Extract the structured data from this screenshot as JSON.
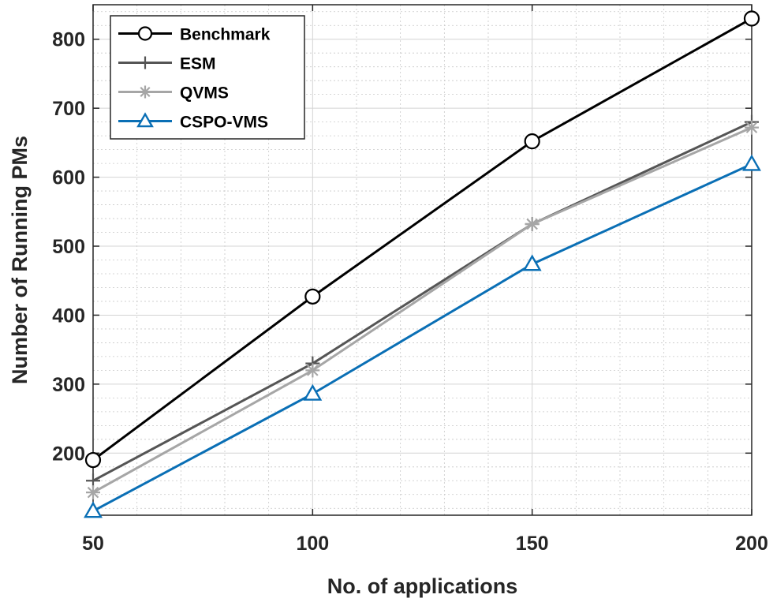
{
  "chart_data": {
    "type": "line",
    "title": "",
    "xlabel": "No. of applications",
    "ylabel": "Number of Running PMs",
    "x": [
      50,
      100,
      150,
      200
    ],
    "xlim": [
      50,
      200
    ],
    "ylim": [
      110,
      850
    ],
    "xticks": [
      50,
      100,
      150,
      200
    ],
    "yticks": [
      200,
      300,
      400,
      500,
      600,
      700,
      800
    ],
    "grid": true,
    "minor_grid": true,
    "legend_position": "top-left",
    "series": [
      {
        "name": "Benchmark",
        "values": [
          190,
          427,
          652,
          830
        ],
        "color": "#000000",
        "marker": "circle"
      },
      {
        "name": "ESM",
        "values": [
          160,
          330,
          532,
          680
        ],
        "color": "#555555",
        "marker": "plus"
      },
      {
        "name": "QVMS",
        "values": [
          143,
          320,
          532,
          672
        ],
        "color": "#a6a6a6",
        "marker": "asterisk"
      },
      {
        "name": "CSPO-VMS",
        "values": [
          116,
          286,
          474,
          619
        ],
        "color": "#0a6fb5",
        "marker": "triangle"
      }
    ]
  }
}
